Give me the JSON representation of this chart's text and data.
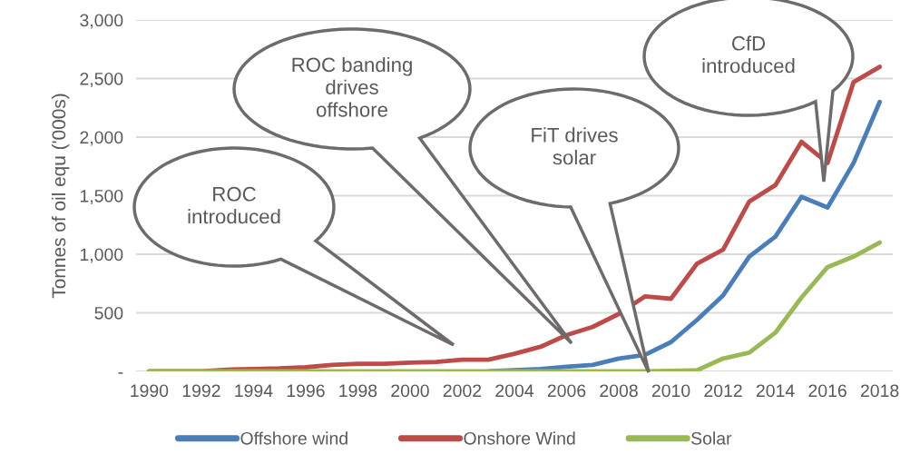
{
  "chart_data": {
    "type": "line",
    "ylabel": "Tonnes of oil equ ('000s)",
    "x": [
      1990,
      1991,
      1992,
      1993,
      1994,
      1995,
      1996,
      1997,
      1998,
      1999,
      2000,
      2001,
      2002,
      2003,
      2004,
      2005,
      2006,
      2007,
      2008,
      2009,
      2010,
      2011,
      2012,
      2013,
      2014,
      2015,
      2016,
      2017,
      2018
    ],
    "series": [
      {
        "name": "Offshore wind",
        "color": "#4a7ebb",
        "values": [
          null,
          null,
          null,
          null,
          null,
          null,
          null,
          null,
          null,
          null,
          null,
          null,
          null,
          0,
          10,
          20,
          40,
          55,
          110,
          140,
          250,
          440,
          650,
          980,
          1150,
          1490,
          1400,
          1780,
          2300
        ]
      },
      {
        "name": "Onshore Wind",
        "color": "#be4b48",
        "values": [
          0,
          0,
          0,
          15,
          20,
          25,
          35,
          55,
          65,
          65,
          75,
          80,
          100,
          100,
          150,
          210,
          310,
          380,
          490,
          640,
          620,
          920,
          1040,
          1450,
          1590,
          1960,
          1780,
          2470,
          2600
        ]
      },
      {
        "name": "Solar",
        "color": "#98b954",
        "values": [
          0,
          0,
          0,
          0,
          0,
          0,
          0,
          0,
          0,
          0,
          0,
          0,
          0,
          0,
          0,
          0,
          0,
          0,
          0,
          0,
          5,
          10,
          110,
          160,
          330,
          630,
          890,
          980,
          1100
        ]
      }
    ],
    "xlim": [
      1989.5,
      2018.5
    ],
    "xticks": [
      1990,
      1992,
      1994,
      1996,
      1998,
      2000,
      2002,
      2004,
      2006,
      2008,
      2010,
      2012,
      2014,
      2016,
      2018
    ],
    "ylim": [
      0,
      3000
    ],
    "yticks": [
      {
        "value": 0,
        "label": "-"
      },
      {
        "value": 500,
        "label": "500"
      },
      {
        "value": 1000,
        "label": "1,000"
      },
      {
        "value": 1500,
        "label": "1,500"
      },
      {
        "value": 2000,
        "label": "2,000"
      },
      {
        "value": 2500,
        "label": "2,500"
      },
      {
        "value": 3000,
        "label": "3,000"
      }
    ],
    "grid": "y",
    "legend": "bottom",
    "marker": "none",
    "line_style": "solid",
    "annotations": [
      "ROC\nintroduced",
      "ROC banding\ndrives\noffshore",
      "FiT drives\nsolar",
      "CfD\nintroduced"
    ]
  }
}
